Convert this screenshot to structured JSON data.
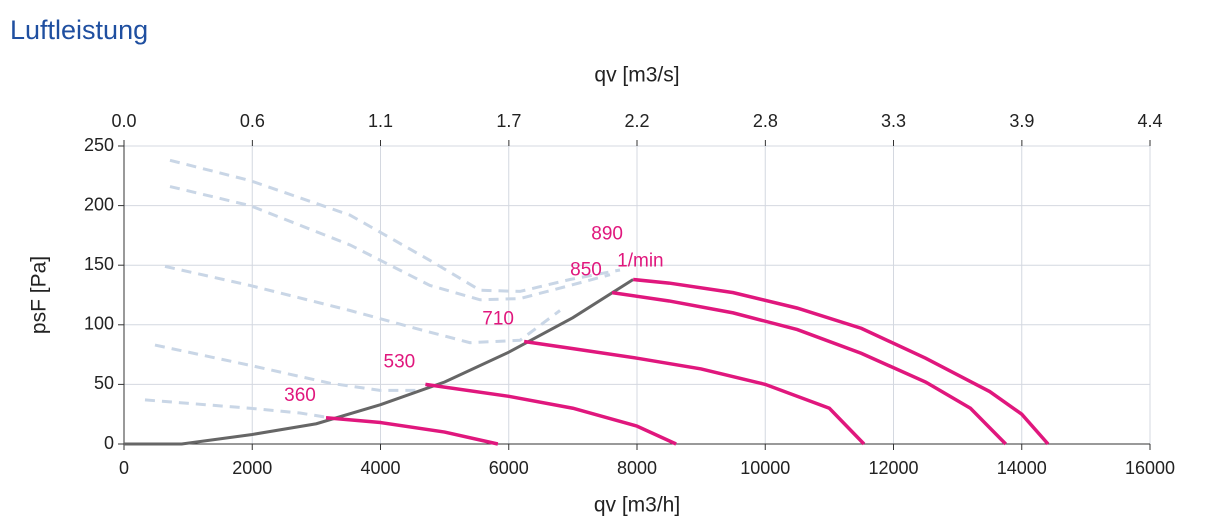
{
  "chart_data": {
    "type": "line",
    "title": "Luftleistung",
    "xlabel": "qv [m3/h]",
    "x2label": "qv [m3/s]",
    "ylabel": "psF [Pa]",
    "annotation": "1/min",
    "xlim": [
      0,
      16000
    ],
    "xticks": [
      0,
      2000,
      4000,
      6000,
      8000,
      10000,
      12000,
      14000,
      16000
    ],
    "x2lim": [
      0,
      4.444
    ],
    "x2ticks": [
      {
        "value": 0,
        "label": "0.0"
      },
      {
        "value": 0.556,
        "label": "0.6"
      },
      {
        "value": 1.111,
        "label": "1.1"
      },
      {
        "value": 1.667,
        "label": "1.7"
      },
      {
        "value": 2.222,
        "label": "2.2"
      },
      {
        "value": 2.778,
        "label": "2.8"
      },
      {
        "value": 3.333,
        "label": "3.3"
      },
      {
        "value": 3.889,
        "label": "3.9"
      },
      {
        "value": 4.444,
        "label": "4.4"
      }
    ],
    "ylim": [
      0,
      250
    ],
    "yticks": [
      0,
      50,
      100,
      150,
      200,
      250
    ],
    "grid": true,
    "series": [
      {
        "name": "360",
        "color": "#e0177d",
        "x": [
          3150,
          4000,
          5000,
          5830
        ],
        "values": [
          22,
          18,
          10,
          0
        ]
      },
      {
        "name": "530",
        "color": "#e0177d",
        "x": [
          4700,
          6000,
          7000,
          8000,
          8610
        ],
        "values": [
          50,
          40,
          30,
          15,
          0
        ]
      },
      {
        "name": "710",
        "color": "#e0177d",
        "x": [
          6240,
          7000,
          8000,
          9000,
          10000,
          11000,
          11540
        ],
        "values": [
          86,
          80,
          72,
          63,
          50,
          30,
          0
        ]
      },
      {
        "name": "850",
        "color": "#e0177d",
        "x": [
          7610,
          8500,
          9500,
          10500,
          11500,
          12500,
          13200,
          13750
        ],
        "values": [
          127,
          120,
          110,
          96,
          76,
          52,
          30,
          0
        ]
      },
      {
        "name": "890",
        "color": "#e0177d",
        "x": [
          7940,
          8500,
          9500,
          10500,
          11500,
          12500,
          13500,
          14000,
          14410
        ],
        "values": [
          138,
          135,
          127,
          114,
          97,
          72,
          44,
          25,
          0
        ]
      }
    ],
    "system_curve": {
      "color": "#666666",
      "x": [
        0,
        900,
        2000,
        3000,
        4000,
        5000,
        6000,
        7000,
        7940
      ],
      "values": [
        0,
        0,
        8,
        17,
        33,
        52,
        77,
        106,
        138
      ]
    },
    "background_color": "#c9d6e6",
    "background_curves": [
      {
        "x": [
          717,
          1965,
          3525,
          4772,
          5552,
          6175,
          6955,
          7735
        ],
        "values": [
          238,
          221,
          192,
          154,
          129,
          128,
          138,
          146
        ]
      },
      {
        "x": [
          717,
          1965,
          3525,
          4772,
          5552,
          6175,
          6955,
          7579
        ],
        "values": [
          216,
          200,
          167,
          133,
          121,
          122,
          133,
          142
        ]
      },
      {
        "x": [
          639,
          1965,
          3525,
          4616,
          5396,
          6175,
          6799
        ],
        "values": [
          149,
          133,
          112,
          96,
          85,
          87,
          112
        ]
      },
      {
        "x": [
          483,
          1965,
          3212,
          3992,
          4616
        ],
        "values": [
          83,
          66,
          51,
          45,
          45
        ]
      },
      {
        "x": [
          327,
          1965,
          2745,
          3212
        ],
        "values": [
          37,
          30,
          26,
          22
        ]
      }
    ]
  }
}
